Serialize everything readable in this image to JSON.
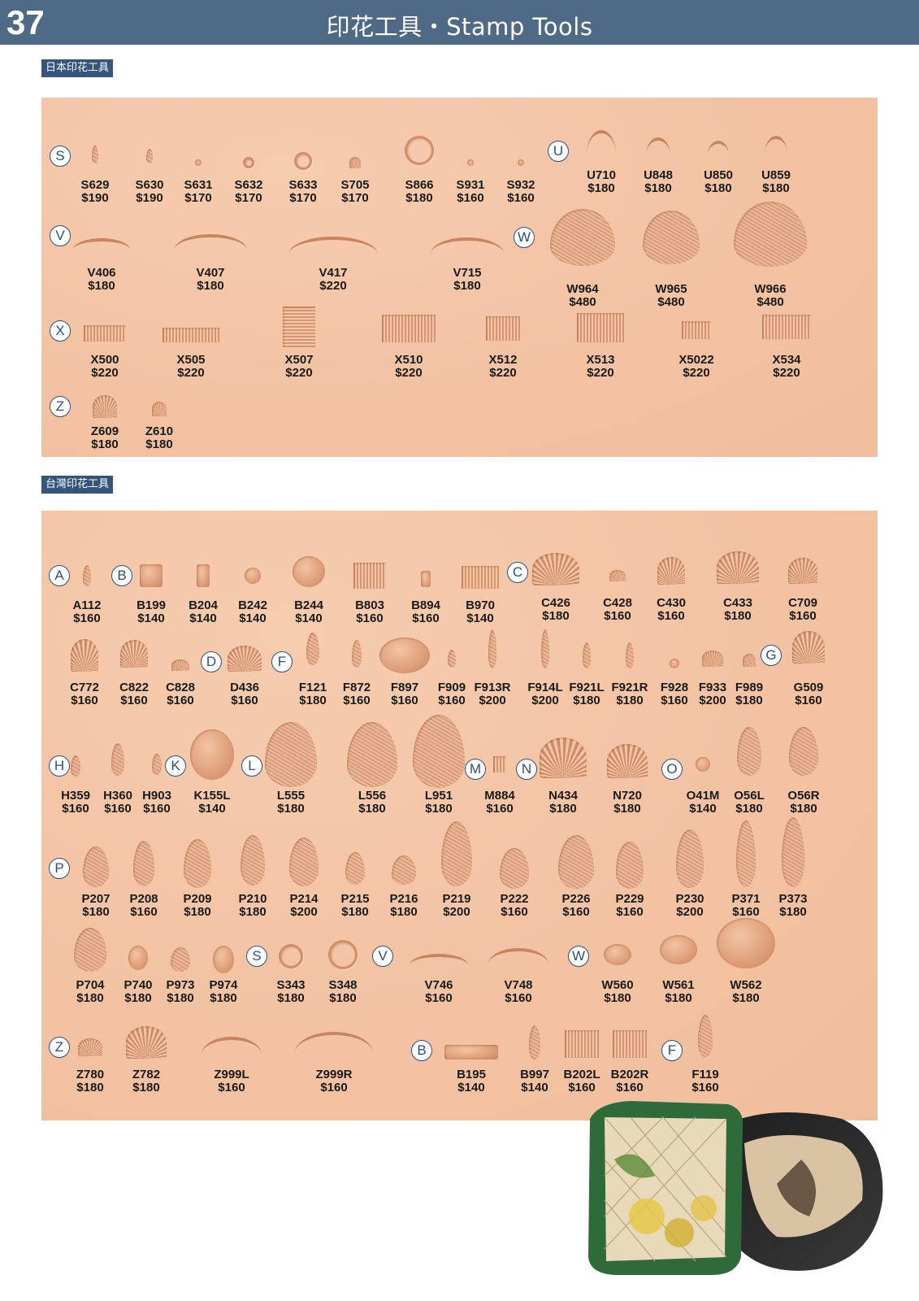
{
  "header": {
    "page_number": "37",
    "title": "印花工具・Stamp Tools"
  },
  "sections": {
    "japan": {
      "label": "日本印花工具"
    },
    "taiwan": {
      "label": "台灣印花工具"
    }
  },
  "markers": {
    "japan": [
      "S",
      "U",
      "V",
      "W",
      "X",
      "Z"
    ],
    "taiwan": [
      "A",
      "B",
      "C",
      "D",
      "F",
      "G",
      "H",
      "K",
      "L",
      "M",
      "N",
      "O",
      "P",
      "S",
      "V",
      "W",
      "Z",
      "B",
      "F"
    ]
  },
  "japan_items": [
    {
      "code": "S629",
      "price": "$190"
    },
    {
      "code": "S630",
      "price": "$190"
    },
    {
      "code": "S631",
      "price": "$170"
    },
    {
      "code": "S632",
      "price": "$170"
    },
    {
      "code": "S633",
      "price": "$170"
    },
    {
      "code": "S705",
      "price": "$170"
    },
    {
      "code": "S866",
      "price": "$180"
    },
    {
      "code": "S931",
      "price": "$160"
    },
    {
      "code": "S932",
      "price": "$160"
    },
    {
      "code": "U710",
      "price": "$180"
    },
    {
      "code": "U848",
      "price": "$180"
    },
    {
      "code": "U850",
      "price": "$180"
    },
    {
      "code": "U859",
      "price": "$180"
    },
    {
      "code": "V406",
      "price": "$180"
    },
    {
      "code": "V407",
      "price": "$180"
    },
    {
      "code": "V417",
      "price": "$220"
    },
    {
      "code": "V715",
      "price": "$180"
    },
    {
      "code": "W964",
      "price": "$480"
    },
    {
      "code": "W965",
      "price": "$480"
    },
    {
      "code": "W966",
      "price": "$480"
    },
    {
      "code": "X500",
      "price": "$220"
    },
    {
      "code": "X505",
      "price": "$220"
    },
    {
      "code": "X507",
      "price": "$220"
    },
    {
      "code": "X510",
      "price": "$220"
    },
    {
      "code": "X512",
      "price": "$220"
    },
    {
      "code": "X513",
      "price": "$220"
    },
    {
      "code": "X5022",
      "price": "$220"
    },
    {
      "code": "X534",
      "price": "$220"
    },
    {
      "code": "Z609",
      "price": "$180"
    },
    {
      "code": "Z610",
      "price": "$180"
    }
  ],
  "taiwan_items": [
    {
      "code": "A112",
      "price": "$160"
    },
    {
      "code": "B199",
      "price": "$140"
    },
    {
      "code": "B204",
      "price": "$140"
    },
    {
      "code": "B242",
      "price": "$140"
    },
    {
      "code": "B244",
      "price": "$140"
    },
    {
      "code": "B803",
      "price": "$160"
    },
    {
      "code": "B894",
      "price": "$160"
    },
    {
      "code": "B970",
      "price": "$140"
    },
    {
      "code": "C426",
      "price": "$180"
    },
    {
      "code": "C428",
      "price": "$160"
    },
    {
      "code": "C430",
      "price": "$160"
    },
    {
      "code": "C433",
      "price": "$180"
    },
    {
      "code": "C709",
      "price": "$160"
    },
    {
      "code": "C772",
      "price": "$160"
    },
    {
      "code": "C822",
      "price": "$160"
    },
    {
      "code": "C828",
      "price": "$160"
    },
    {
      "code": "D436",
      "price": "$160"
    },
    {
      "code": "F121",
      "price": "$180"
    },
    {
      "code": "F872",
      "price": "$160"
    },
    {
      "code": "F897",
      "price": "$160"
    },
    {
      "code": "F909",
      "price": "$160"
    },
    {
      "code": "F913R",
      "price": "$200"
    },
    {
      "code": "F914L",
      "price": "$200"
    },
    {
      "code": "F921L",
      "price": "$180"
    },
    {
      "code": "F921R",
      "price": "$180"
    },
    {
      "code": "F928",
      "price": "$160"
    },
    {
      "code": "F933",
      "price": "$200"
    },
    {
      "code": "F989",
      "price": "$180"
    },
    {
      "code": "G509",
      "price": "$160"
    },
    {
      "code": "H359",
      "price": "$160"
    },
    {
      "code": "H360",
      "price": "$160"
    },
    {
      "code": "H903",
      "price": "$160"
    },
    {
      "code": "K155L",
      "price": "$140"
    },
    {
      "code": "L555",
      "price": "$180"
    },
    {
      "code": "L556",
      "price": "$180"
    },
    {
      "code": "L951",
      "price": "$180"
    },
    {
      "code": "M884",
      "price": "$160"
    },
    {
      "code": "N434",
      "price": "$180"
    },
    {
      "code": "N720",
      "price": "$180"
    },
    {
      "code": "O41M",
      "price": "$140"
    },
    {
      "code": "O56L",
      "price": "$180"
    },
    {
      "code": "O56R",
      "price": "$180"
    },
    {
      "code": "P207",
      "price": "$180"
    },
    {
      "code": "P208",
      "price": "$160"
    },
    {
      "code": "P209",
      "price": "$180"
    },
    {
      "code": "P210",
      "price": "$180"
    },
    {
      "code": "P214",
      "price": "$200"
    },
    {
      "code": "P215",
      "price": "$180"
    },
    {
      "code": "P216",
      "price": "$180"
    },
    {
      "code": "P219",
      "price": "$200"
    },
    {
      "code": "P222",
      "price": "$160"
    },
    {
      "code": "P226",
      "price": "$160"
    },
    {
      "code": "P229",
      "price": "$160"
    },
    {
      "code": "P230",
      "price": "$200"
    },
    {
      "code": "P371",
      "price": "$160"
    },
    {
      "code": "P373",
      "price": "$180"
    },
    {
      "code": "P704",
      "price": "$180"
    },
    {
      "code": "P740",
      "price": "$180"
    },
    {
      "code": "P973",
      "price": "$180"
    },
    {
      "code": "P974",
      "price": "$180"
    },
    {
      "code": "S343",
      "price": "$180"
    },
    {
      "code": "S348",
      "price": "$180"
    },
    {
      "code": "V746",
      "price": "$160"
    },
    {
      "code": "V748",
      "price": "$160"
    },
    {
      "code": "W560",
      "price": "$180"
    },
    {
      "code": "W561",
      "price": "$180"
    },
    {
      "code": "W562",
      "price": "$180"
    },
    {
      "code": "Z780",
      "price": "$180"
    },
    {
      "code": "Z782",
      "price": "$180"
    },
    {
      "code": "Z999L",
      "price": "$160"
    },
    {
      "code": "Z999R",
      "price": "$160"
    },
    {
      "code": "B195",
      "price": "$140"
    },
    {
      "code": "B997",
      "price": "$140"
    },
    {
      "code": "B202L",
      "price": "$160"
    },
    {
      "code": "B202R",
      "price": "$160"
    },
    {
      "code": "F119",
      "price": "$160"
    }
  ]
}
